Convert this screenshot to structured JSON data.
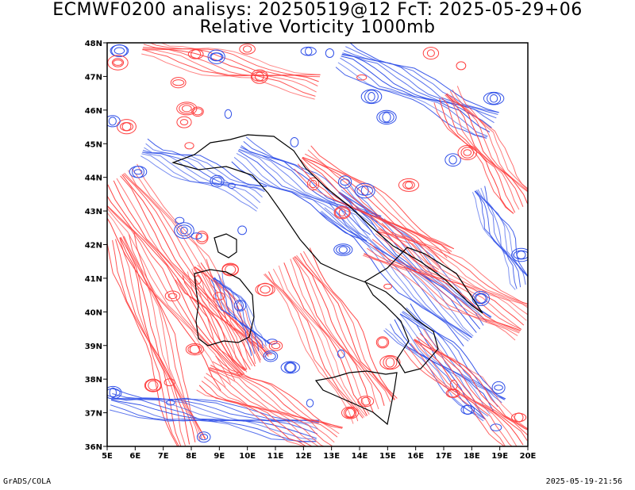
{
  "header": {
    "line1": "ECMWF0200 analisys: 20250519@12 FcT: 2025-05-29+06",
    "line2": "Relative Vorticity 1000mb"
  },
  "map": {
    "projection": "lat-lon",
    "lon_range": [
      5,
      20
    ],
    "lat_range": [
      36,
      48
    ],
    "lon_ticks": [
      "5E",
      "6E",
      "7E",
      "8E",
      "9E",
      "10E",
      "11E",
      "12E",
      "13E",
      "14E",
      "15E",
      "16E",
      "17E",
      "18E",
      "19E",
      "20E"
    ],
    "lat_ticks": [
      "36N",
      "37N",
      "38N",
      "39N",
      "40N",
      "41N",
      "42N",
      "43N",
      "44N",
      "45N",
      "46N",
      "47N",
      "48N"
    ],
    "colors": {
      "positive": "#ff4040",
      "negative": "#3050e8",
      "coast": "#000000"
    }
  },
  "footer": {
    "left": "GrADS/COLA",
    "right": "2025-05-19-21:56"
  }
}
